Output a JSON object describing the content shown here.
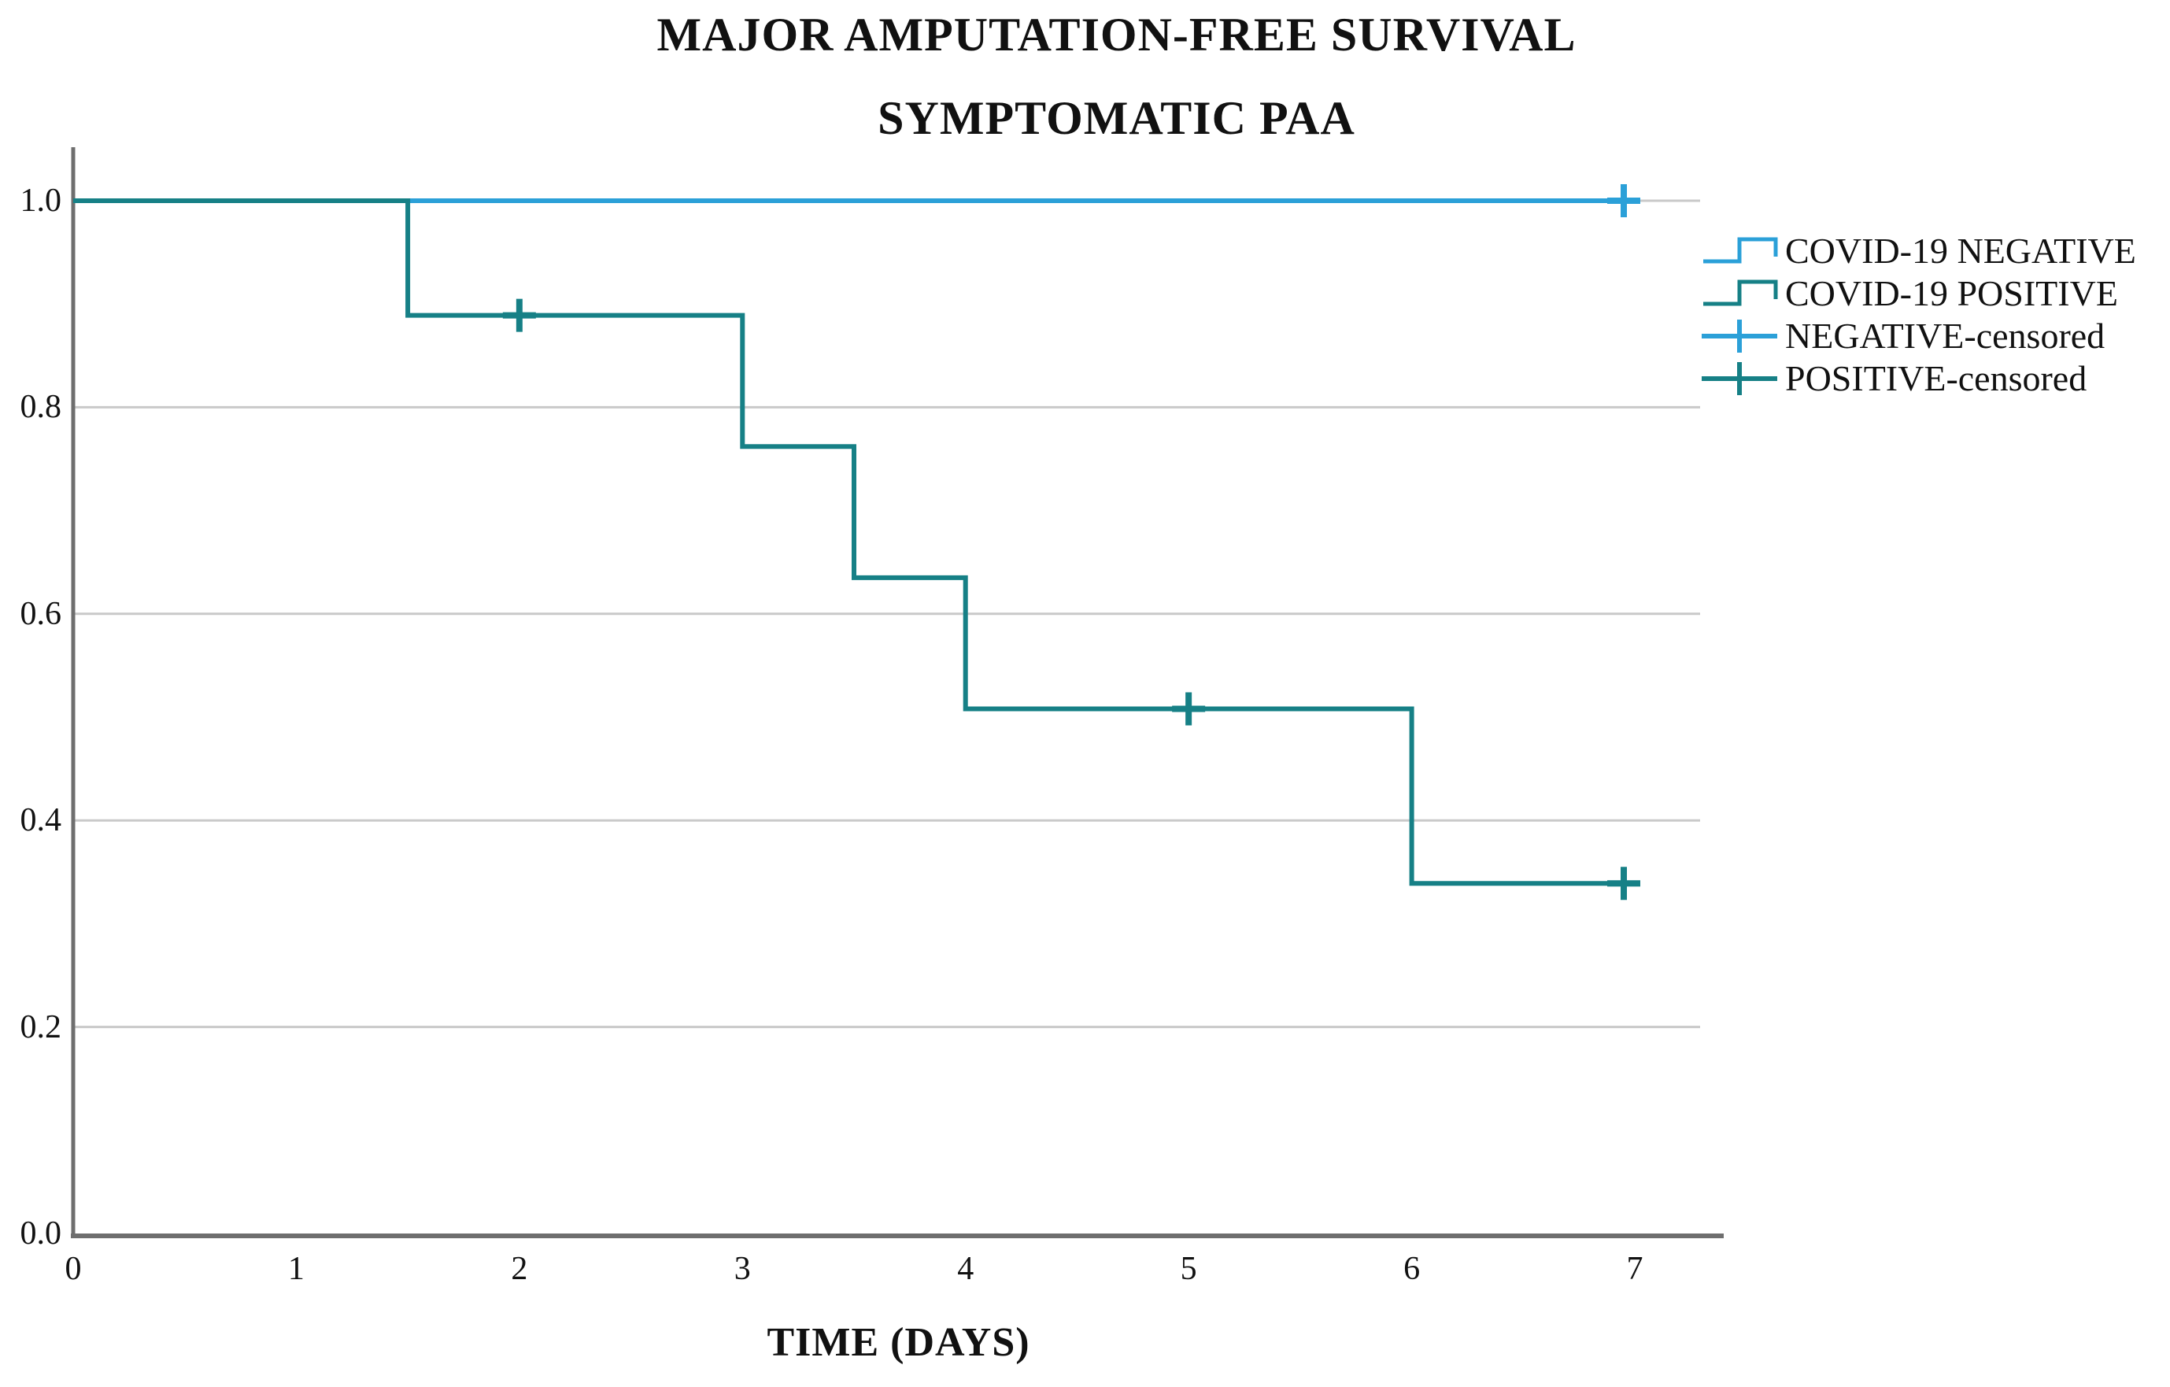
{
  "title": {
    "line1": "MAJOR AMPUTATION-FREE SURVIVAL",
    "line2": "SYMPTOMATIC PAA"
  },
  "axes": {
    "x_label": "TIME (DAYS)",
    "x_tick_labels": [
      "0",
      "1",
      "2",
      "3",
      "4",
      "5",
      "6",
      "7"
    ],
    "y_tick_labels": [
      "1.0",
      "0.8",
      "0.6",
      "0.4",
      "0.2",
      "0.0"
    ]
  },
  "legend": [
    {
      "label": "COVID-19 NEGATIVE",
      "icon": "step-line-icon",
      "color": "#2BA0D8"
    },
    {
      "label": "COVID-19 POSITIVE",
      "icon": "step-line-icon",
      "color": "#168086"
    },
    {
      "label": "NEGATIVE-censored",
      "icon": "censor-plus-icon",
      "color": "#2BA0D8"
    },
    {
      "label": "POSITIVE-censored",
      "icon": "censor-plus-icon",
      "color": "#168086"
    }
  ],
  "colors": {
    "negative_line": "#2BA0D8",
    "positive_line": "#168086",
    "gridline": "#C9C9C9",
    "axis": "#6E6E6E",
    "text": "#111111"
  },
  "chart_data": {
    "type": "line",
    "subtype": "kaplan-meier-step-function",
    "title": "MAJOR AMPUTATION-FREE SURVIVAL — SYMPTOMATIC PAA",
    "xlabel": "TIME (DAYS)",
    "ylabel": "",
    "xlim": [
      0,
      7.4
    ],
    "ylim": [
      0.0,
      1.05
    ],
    "x_ticks": [
      0,
      1,
      2,
      3,
      4,
      5,
      6,
      7
    ],
    "y_ticks": [
      1.0,
      0.8,
      0.6,
      0.4,
      0.2,
      0.0
    ],
    "grid": "horizontal",
    "legend_position": "right",
    "series": [
      {
        "name": "COVID-19 NEGATIVE",
        "color": "#2BA0D8",
        "steps": [
          [
            0,
            1.0
          ],
          [
            7,
            1.0
          ]
        ],
        "censored": [
          [
            7,
            1.0
          ]
        ]
      },
      {
        "name": "COVID-19 POSITIVE",
        "color": "#168086",
        "steps": [
          [
            0,
            1.0
          ],
          [
            1.5,
            1.0
          ],
          [
            1.5,
            0.889
          ],
          [
            3,
            0.889
          ],
          [
            3,
            0.762
          ],
          [
            3.5,
            0.762
          ],
          [
            3.5,
            0.635
          ],
          [
            4,
            0.635
          ],
          [
            4,
            0.508
          ],
          [
            6,
            0.508
          ],
          [
            6,
            0.339
          ],
          [
            7,
            0.339
          ]
        ],
        "censored": [
          [
            2,
            0.889
          ],
          [
            5,
            0.508
          ],
          [
            7,
            0.339
          ]
        ]
      }
    ]
  }
}
